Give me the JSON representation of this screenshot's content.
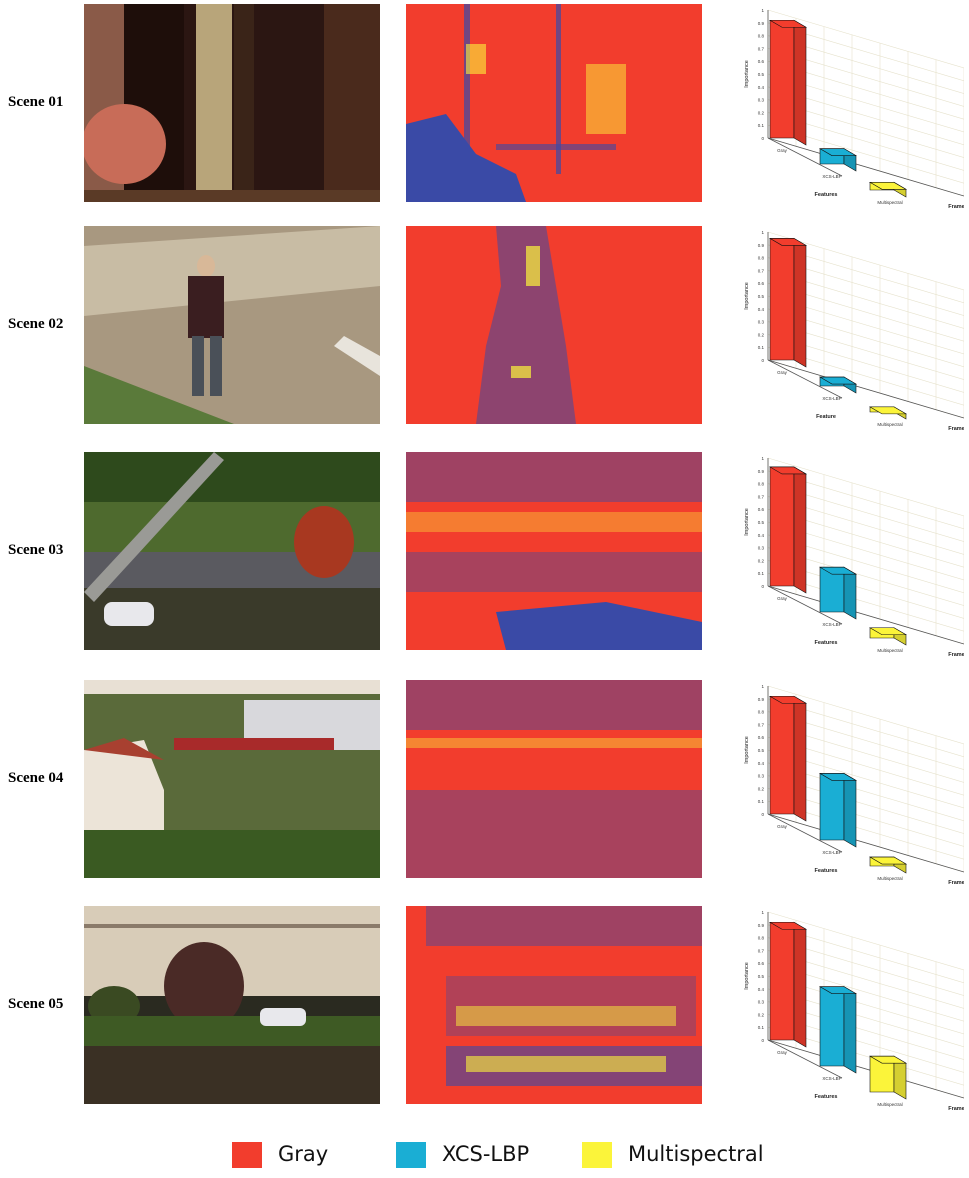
{
  "colors": {
    "gray": "#f23d2d",
    "xcslbp": "#1aaed4",
    "multispectral": "#fbf43a",
    "background_class": "#3a4aa6"
  },
  "scenes": [
    {
      "label": "Scene 01"
    },
    {
      "label": "Scene 02"
    },
    {
      "label": "Scene 03"
    },
    {
      "label": "Scene 04"
    },
    {
      "label": "Scene 05"
    }
  ],
  "legend": [
    {
      "label": "Gray",
      "color": "#f23d2d"
    },
    {
      "label": "XCS-LBP",
      "color": "#1aaed4"
    },
    {
      "label": "Multispectral",
      "color": "#fbf43a"
    }
  ],
  "chart_data": [
    {
      "type": "bar",
      "categories": [
        "Gray",
        "XCS-LBP",
        "Multispectral"
      ],
      "values": [
        0.92,
        0.12,
        0.06
      ],
      "ylabel": "Importance",
      "xlabel": "Features",
      "zlabel": "Frames",
      "ylim": [
        0,
        1
      ],
      "yticks": [
        "0",
        "0.1",
        "0.2",
        "0.3",
        "0.4",
        "0.5",
        "0.6",
        "0.7",
        "0.8",
        "0.9",
        "1"
      ]
    },
    {
      "type": "bar",
      "categories": [
        "Gray",
        "XCS-LBP",
        "Multispectral"
      ],
      "values": [
        0.95,
        0.07,
        0.04
      ],
      "ylabel": "Importance",
      "xlabel": "Feature",
      "zlabel": "Frames",
      "ylim": [
        0,
        1
      ],
      "yticks": [
        "0",
        "0.1",
        "0.2",
        "0.3",
        "0.4",
        "0.5",
        "0.6",
        "0.7",
        "0.8",
        "0.9",
        "1"
      ]
    },
    {
      "type": "bar",
      "categories": [
        "Gray",
        "XCS-LBP",
        "Multispectral"
      ],
      "values": [
        0.93,
        0.35,
        0.08
      ],
      "ylabel": "Importance",
      "xlabel": "Features",
      "zlabel": "Frames",
      "ylim": [
        0,
        1
      ],
      "yticks": [
        "0",
        "0.1",
        "0.2",
        "0.3",
        "0.4",
        "0.5",
        "0.6",
        "0.7",
        "0.8",
        "0.9",
        "1"
      ]
    },
    {
      "type": "bar",
      "categories": [
        "Gray",
        "XCS-LBP",
        "Multispectral"
      ],
      "values": [
        0.92,
        0.52,
        0.07
      ],
      "ylabel": "Importance",
      "xlabel": "Features",
      "zlabel": "Frames",
      "ylim": [
        0,
        1
      ],
      "yticks": [
        "0",
        "0.1",
        "0.2",
        "0.3",
        "0.4",
        "0.5",
        "0.6",
        "0.7",
        "0.8",
        "0.9",
        "1"
      ]
    },
    {
      "type": "bar",
      "categories": [
        "Gray",
        "XCS-LBP",
        "Multispectral"
      ],
      "values": [
        0.92,
        0.62,
        0.28
      ],
      "ylabel": "Importance",
      "xlabel": "Features",
      "zlabel": "Frames",
      "ylim": [
        0,
        1
      ],
      "yticks": [
        "0",
        "0.1",
        "0.2",
        "0.3",
        "0.4",
        "0.5",
        "0.6",
        "0.7",
        "0.8",
        "0.9",
        "1"
      ]
    }
  ]
}
